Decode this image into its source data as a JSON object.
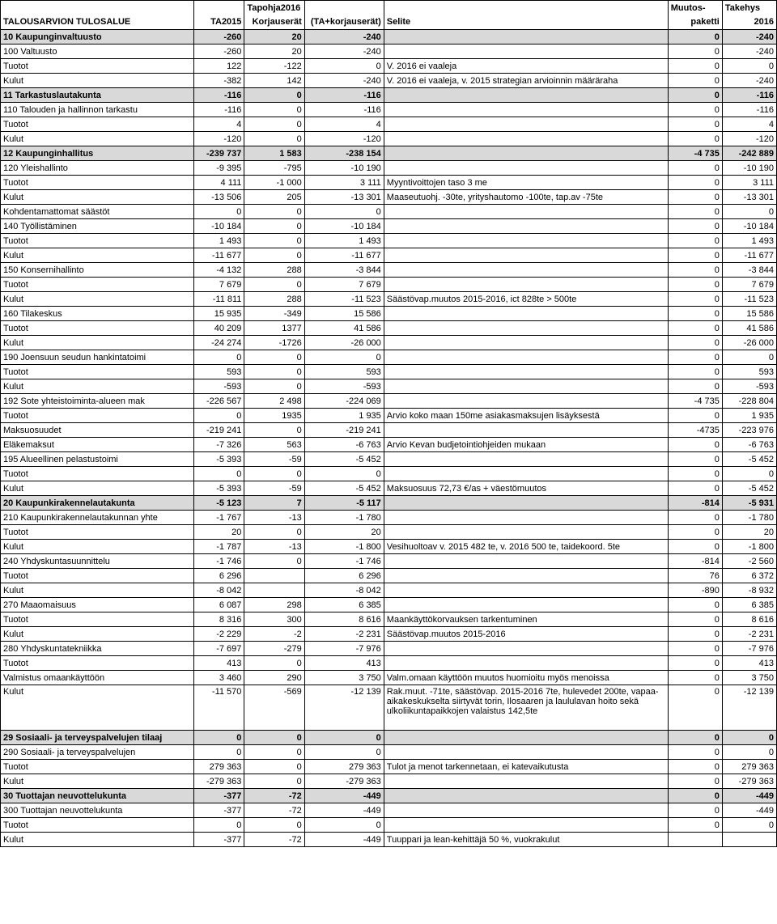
{
  "header": {
    "r1": [
      "",
      "",
      "Tapohja2016",
      "",
      "Muutos-",
      "Takehys"
    ],
    "r2": [
      "TALOUSARVION TULOSALUE",
      "TA2015",
      "Korjauserät",
      "(TA+korjauserät)",
      "Selite",
      "paketti",
      "2016"
    ]
  },
  "rows": [
    {
      "t": "shade",
      "c": [
        "10 Kaupunginvaltuusto",
        "-260",
        "20",
        "-240",
        "",
        "0",
        "-240"
      ]
    },
    {
      "t": "",
      "c": [
        "100 Valtuusto",
        "-260",
        "20",
        "-240",
        "",
        "0",
        "-240"
      ]
    },
    {
      "t": "",
      "c": [
        "      Tuotot",
        "122",
        "-122",
        "0",
        "V. 2016 ei vaaleja",
        "0",
        "0"
      ]
    },
    {
      "t": "",
      "c": [
        "      Kulut",
        "-382",
        "142",
        "-240",
        "V. 2016 ei vaaleja, v. 2015 strategian arvioinnin määräraha",
        "0",
        "-240"
      ]
    },
    {
      "t": "shade",
      "c": [
        "11 Tarkastuslautakunta",
        "-116",
        "0",
        "-116",
        "",
        "0",
        "-116"
      ]
    },
    {
      "t": "",
      "c": [
        "110 Talouden ja hallinnon tarkastu",
        "-116",
        "0",
        "-116",
        "",
        "0",
        "-116"
      ]
    },
    {
      "t": "",
      "c": [
        "      Tuotot",
        "4",
        "0",
        "4",
        "",
        "0",
        "4"
      ]
    },
    {
      "t": "",
      "c": [
        "      Kulut",
        "-120",
        "0",
        "-120",
        "",
        "0",
        "-120"
      ]
    },
    {
      "t": "shade",
      "c": [
        "12 Kaupunginhallitus",
        "-239 737",
        "1 583",
        "-238 154",
        "",
        "-4 735",
        "-242 889"
      ]
    },
    {
      "t": "",
      "c": [
        "120 Yleishallinto",
        "-9 395",
        "-795",
        "-10 190",
        "",
        "0",
        "-10 190"
      ]
    },
    {
      "t": "",
      "c": [
        "      Tuotot",
        "4 111",
        "-1 000",
        "3 111",
        "Myyntivoittojen taso 3 me",
        "0",
        "3 111"
      ]
    },
    {
      "t": "",
      "c": [
        "      Kulut",
        "-13 506",
        "205",
        "-13 301",
        "Maaseutuohj. -30te, yrityshautomo -100te, tap.av -75te",
        "0",
        "-13 301"
      ]
    },
    {
      "t": "",
      "c": [
        "      Kohdentamattomat säästöt",
        "0",
        "0",
        "0",
        "",
        "0",
        "0"
      ]
    },
    {
      "t": "",
      "c": [
        "140 Työllistäminen",
        "-10 184",
        "0",
        "-10 184",
        "",
        "0",
        "-10 184"
      ]
    },
    {
      "t": "",
      "c": [
        "      Tuotot",
        "1 493",
        "0",
        "1 493",
        "",
        "0",
        "1 493"
      ]
    },
    {
      "t": "",
      "c": [
        "      Kulut",
        "-11 677",
        "0",
        "-11 677",
        "",
        "0",
        "-11 677"
      ]
    },
    {
      "t": "",
      "c": [
        "150 Konsernihallinto",
        "-4 132",
        "288",
        "-3 844",
        "",
        "0",
        "-3 844"
      ]
    },
    {
      "t": "",
      "c": [
        "      Tuotot",
        "7 679",
        "0",
        "7 679",
        "",
        "0",
        "7 679"
      ]
    },
    {
      "t": "",
      "c": [
        "      Kulut",
        "-11 811",
        "288",
        "-11 523",
        "Säästövap.muutos 2015-2016, ict 828te > 500te",
        "0",
        "-11 523"
      ]
    },
    {
      "t": "",
      "c": [
        "160 Tilakeskus",
        "15 935",
        "-349",
        "15 586",
        "",
        "0",
        "15 586"
      ]
    },
    {
      "t": "",
      "c": [
        "      Tuotot",
        "40 209",
        "1377",
        "41 586",
        "",
        "0",
        "41 586"
      ]
    },
    {
      "t": "",
      "c": [
        "      Kulut",
        "-24 274",
        "-1726",
        "-26 000",
        "",
        "0",
        "-26 000"
      ]
    },
    {
      "t": "",
      "c": [
        "190 Joensuun seudun hankintatoimi",
        "0",
        "0",
        "0",
        "",
        "0",
        "0"
      ]
    },
    {
      "t": "",
      "c": [
        "      Tuotot",
        "593",
        "0",
        "593",
        "",
        "0",
        "593"
      ]
    },
    {
      "t": "",
      "c": [
        "      Kulut",
        "-593",
        "0",
        "-593",
        "",
        "0",
        "-593"
      ]
    },
    {
      "t": "",
      "c": [
        "192 Sote yhteistoiminta-alueen mak",
        "-226 567",
        "2 498",
        "-224 069",
        "",
        "-4 735",
        "-228 804"
      ]
    },
    {
      "t": "",
      "c": [
        "      Tuotot",
        "0",
        "1935",
        "1 935",
        "Arvio koko maan 150me asiakasmaksujen lisäyksestä",
        "0",
        "1 935"
      ]
    },
    {
      "t": "",
      "c": [
        "      Maksuosuudet",
        "-219 241",
        "0",
        "-219 241",
        "",
        "-4735",
        "-223 976"
      ]
    },
    {
      "t": "",
      "c": [
        "      Eläkemaksut",
        "-7 326",
        "563",
        "-6 763",
        "Arvio Kevan budjetointiohjeiden mukaan",
        "0",
        "-6 763"
      ]
    },
    {
      "t": "",
      "c": [
        "195 Alueellinen pelastustoimi",
        "-5 393",
        "-59",
        "-5 452",
        "",
        "0",
        "-5 452"
      ]
    },
    {
      "t": "",
      "c": [
        "      Tuotot",
        "0",
        "0",
        "0",
        "",
        "0",
        "0"
      ]
    },
    {
      "t": "",
      "c": [
        "      Kulut",
        "-5 393",
        "-59",
        "-5 452",
        "Maksuosuus 72,73 €/as + väestömuutos",
        "0",
        "-5 452"
      ]
    },
    {
      "t": "shade",
      "c": [
        "20 Kaupunkirakennelautakunta",
        "-5 123",
        "7",
        "-5 117",
        "",
        "-814",
        "-5 931"
      ]
    },
    {
      "t": "",
      "c": [
        "210 Kaupunkirakennelautakunnan yhte",
        "-1 767",
        "-13",
        "-1 780",
        "",
        "0",
        "-1 780"
      ]
    },
    {
      "t": "",
      "c": [
        "      Tuotot",
        "20",
        "0",
        "20",
        "",
        "0",
        "20"
      ]
    },
    {
      "t": "",
      "c": [
        "      Kulut",
        "-1 787",
        "-13",
        "-1 800",
        "Vesihuoltoav v. 2015 482 te, v. 2016 500 te, taidekoord. 5te",
        "0",
        "-1 800"
      ]
    },
    {
      "t": "",
      "c": [
        "240 Yhdyskuntasuunnittelu",
        "-1 746",
        "0",
        "-1 746",
        "",
        "-814",
        "-2 560"
      ]
    },
    {
      "t": "",
      "c": [
        "      Tuotot",
        "6 296",
        "",
        "6 296",
        "",
        "76",
        "6 372"
      ]
    },
    {
      "t": "",
      "c": [
        "      Kulut",
        "-8 042",
        "",
        "-8 042",
        "",
        "-890",
        "-8 932"
      ]
    },
    {
      "t": "",
      "c": [
        "270 Maaomaisuus",
        "6 087",
        "298",
        "6 385",
        "",
        "0",
        "6 385"
      ]
    },
    {
      "t": "",
      "c": [
        "      Tuotot",
        "8 316",
        "300",
        "8 616",
        "Maankäyttökorvauksen tarkentuminen",
        "0",
        "8 616"
      ]
    },
    {
      "t": "",
      "c": [
        "      Kulut",
        "-2 229",
        "-2",
        "-2 231",
        "Säästövap.muutos 2015-2016",
        "0",
        "-2 231"
      ]
    },
    {
      "t": "",
      "c": [
        "280 Yhdyskuntatekniikka",
        "-7 697",
        "-279",
        "-7 976",
        "",
        "0",
        "-7 976"
      ]
    },
    {
      "t": "",
      "c": [
        "      Tuotot",
        "413",
        "0",
        "413",
        "",
        "0",
        "413"
      ]
    },
    {
      "t": "",
      "c": [
        "      Valmistus omaankäyttöön",
        "3 460",
        "290",
        "3 750",
        "Valm.omaan käyttöön muutos huomioitu myös menoissa",
        "0",
        "3 750"
      ]
    },
    {
      "t": "tall",
      "c": [
        "      Kulut",
        "-11 570",
        "-569",
        "-12 139",
        "Rak.muut. -71te, säästövap. 2015-2016 7te, hulevedet 200te, vapaa-aikakeskukselta siirtyvät torin, Ilosaaren ja laululavan hoito sekä ulkoliikuntapaikkojen valaistus 142,5te",
        "0",
        "-12 139"
      ]
    },
    {
      "t": "shade",
      "c": [
        "29 Sosiaali- ja terveyspalvelujen tilaaj",
        "0",
        "0",
        "0",
        "",
        "0",
        "0"
      ]
    },
    {
      "t": "",
      "c": [
        "290 Sosiaali- ja terveyspalvelujen",
        "0",
        "0",
        "0",
        "",
        "0",
        "0"
      ]
    },
    {
      "t": "",
      "c": [
        "      Tuotot",
        "279 363",
        "0",
        "279 363",
        "Tulot ja menot tarkennetaan, ei katevaikutusta",
        "0",
        "279 363"
      ]
    },
    {
      "t": "",
      "c": [
        "      Kulut",
        "-279 363",
        "0",
        "-279 363",
        "",
        "0",
        "-279 363"
      ]
    },
    {
      "t": "shade",
      "c": [
        "30 Tuottajan neuvottelukunta",
        "-377",
        "-72",
        "-449",
        "",
        "0",
        "-449"
      ]
    },
    {
      "t": "",
      "c": [
        "300 Tuottajan neuvottelukunta",
        "-377",
        "-72",
        "-449",
        "",
        "0",
        "-449"
      ]
    },
    {
      "t": "",
      "c": [
        "      Tuotot",
        "0",
        "0",
        "0",
        "",
        "0",
        "0"
      ]
    },
    {
      "t": "",
      "c": [
        "      Kulut",
        "-377",
        "-72",
        "-449",
        "Tuuppari ja lean-kehittäjä 50 %, vuokrakulut",
        "",
        ""
      ]
    }
  ]
}
